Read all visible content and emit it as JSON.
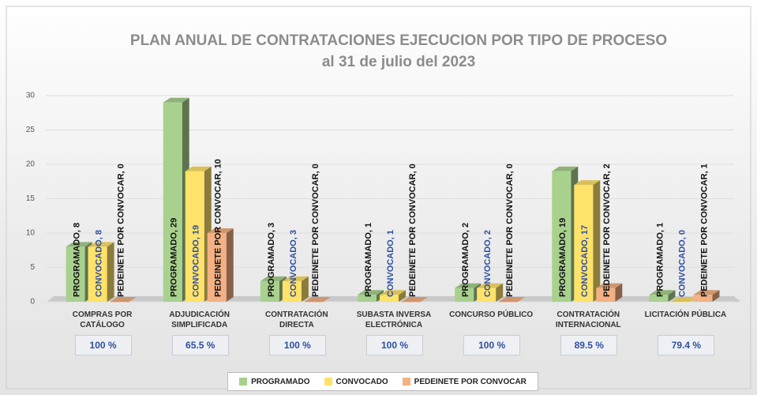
{
  "chart_data": {
    "type": "bar3d",
    "title": "PLAN ANUAL DE CONTRATACIONES EJECUCION POR TIPO DE PROCESO",
    "subtitle": "al 31 de julio del 2023",
    "categories": [
      "COMPRAS POR CATÁLOGO",
      "ADJUDICACIÓN SIMPLIFICADA",
      "CONTRATACIÓN DIRECTA",
      "SUBASTA INVERSA ELECTRÓNICA",
      "CONCURSO PÚBLICO",
      "CONTRATACIÓN INTERNACIONAL",
      "LICITACIÓN PÚBLICA"
    ],
    "series": [
      {
        "name": "PROGRAMADO",
        "color": "#a9d18e",
        "label_color": "#111111",
        "values": [
          8,
          29,
          3,
          1,
          2,
          19,
          1
        ],
        "value_labels": [
          "PROGRAMADO, 8",
          "PROGRAMADO, 29",
          "PROGRAMADO, 3",
          "PROGRAMADO, 1",
          "PROGRAMADO, 2",
          "PROGRAMADO, 19",
          "PROGRAMADO, 1"
        ]
      },
      {
        "name": "CONVOCADO",
        "color": "#ffe269",
        "label_color": "#2f4fa0",
        "values": [
          8,
          19,
          3,
          1,
          2,
          17,
          0
        ],
        "value_labels": [
          "CONVOCADO, 8",
          "CONVOCADO, 19",
          "CONVOCADO, 3",
          "CONVOCADO, 1",
          "CONVOCADO, 2",
          "CONVOCADO, 17",
          "CONVOCADO, 0"
        ]
      },
      {
        "name": "PEDEINETE POR CONVOCAR",
        "color": "#f4b183",
        "label_color": "#111111",
        "values": [
          0,
          10,
          0,
          0,
          0,
          2,
          1
        ],
        "value_labels": [
          "PEDEINETE POR CONVOCAR, 0",
          "PEDEINETE POR CONVOCAR, 10",
          "PEDEINETE POR CONVOCAR, 0",
          "PEDEINETE POR CONVOCAR, 0",
          "PEDEINETE POR CONVOCAR, 0",
          "PEDEINETE POR CONVOCAR, 2",
          "PEDEINETE POR CONVOCAR, 1"
        ]
      }
    ],
    "annotations": [
      "100 %",
      "65.5 %",
      "100 %",
      "100 %",
      "100 %",
      "89.5 %",
      "79.4 %"
    ],
    "ylim": [
      0,
      30
    ],
    "yticks": [
      0,
      5,
      10,
      15,
      20,
      25,
      30
    ],
    "grid": true,
    "legend": "bottom"
  }
}
